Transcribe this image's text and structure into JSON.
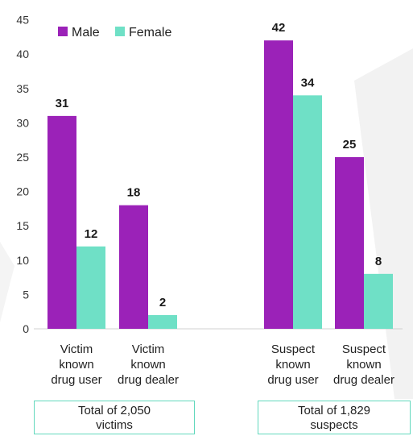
{
  "chart_data": {
    "type": "bar",
    "title": "",
    "xlabel": "",
    "ylabel": "",
    "ylim": [
      0,
      45
    ],
    "yticks": [
      0,
      5,
      10,
      15,
      20,
      25,
      30,
      35,
      40,
      45
    ],
    "grid": false,
    "legend_position": "top-left",
    "categories": [
      [
        "Victim",
        "known",
        "drug user"
      ],
      [
        "Victim",
        "known",
        "drug dealer"
      ],
      [
        "Suspect",
        "known",
        "drug user"
      ],
      [
        "Suspect",
        "known",
        "drug dealer"
      ]
    ],
    "series": [
      {
        "name": "Male",
        "color": "#9b22b8",
        "values": [
          31,
          18,
          42,
          25
        ]
      },
      {
        "name": "Female",
        "color": "#6fe0c6",
        "values": [
          12,
          2,
          34,
          8
        ]
      }
    ],
    "group_labels": [
      {
        "line1": "Total of 2,050",
        "line2": "victims"
      },
      {
        "line1": "Total of 1,829",
        "line2": "suspects"
      }
    ]
  }
}
